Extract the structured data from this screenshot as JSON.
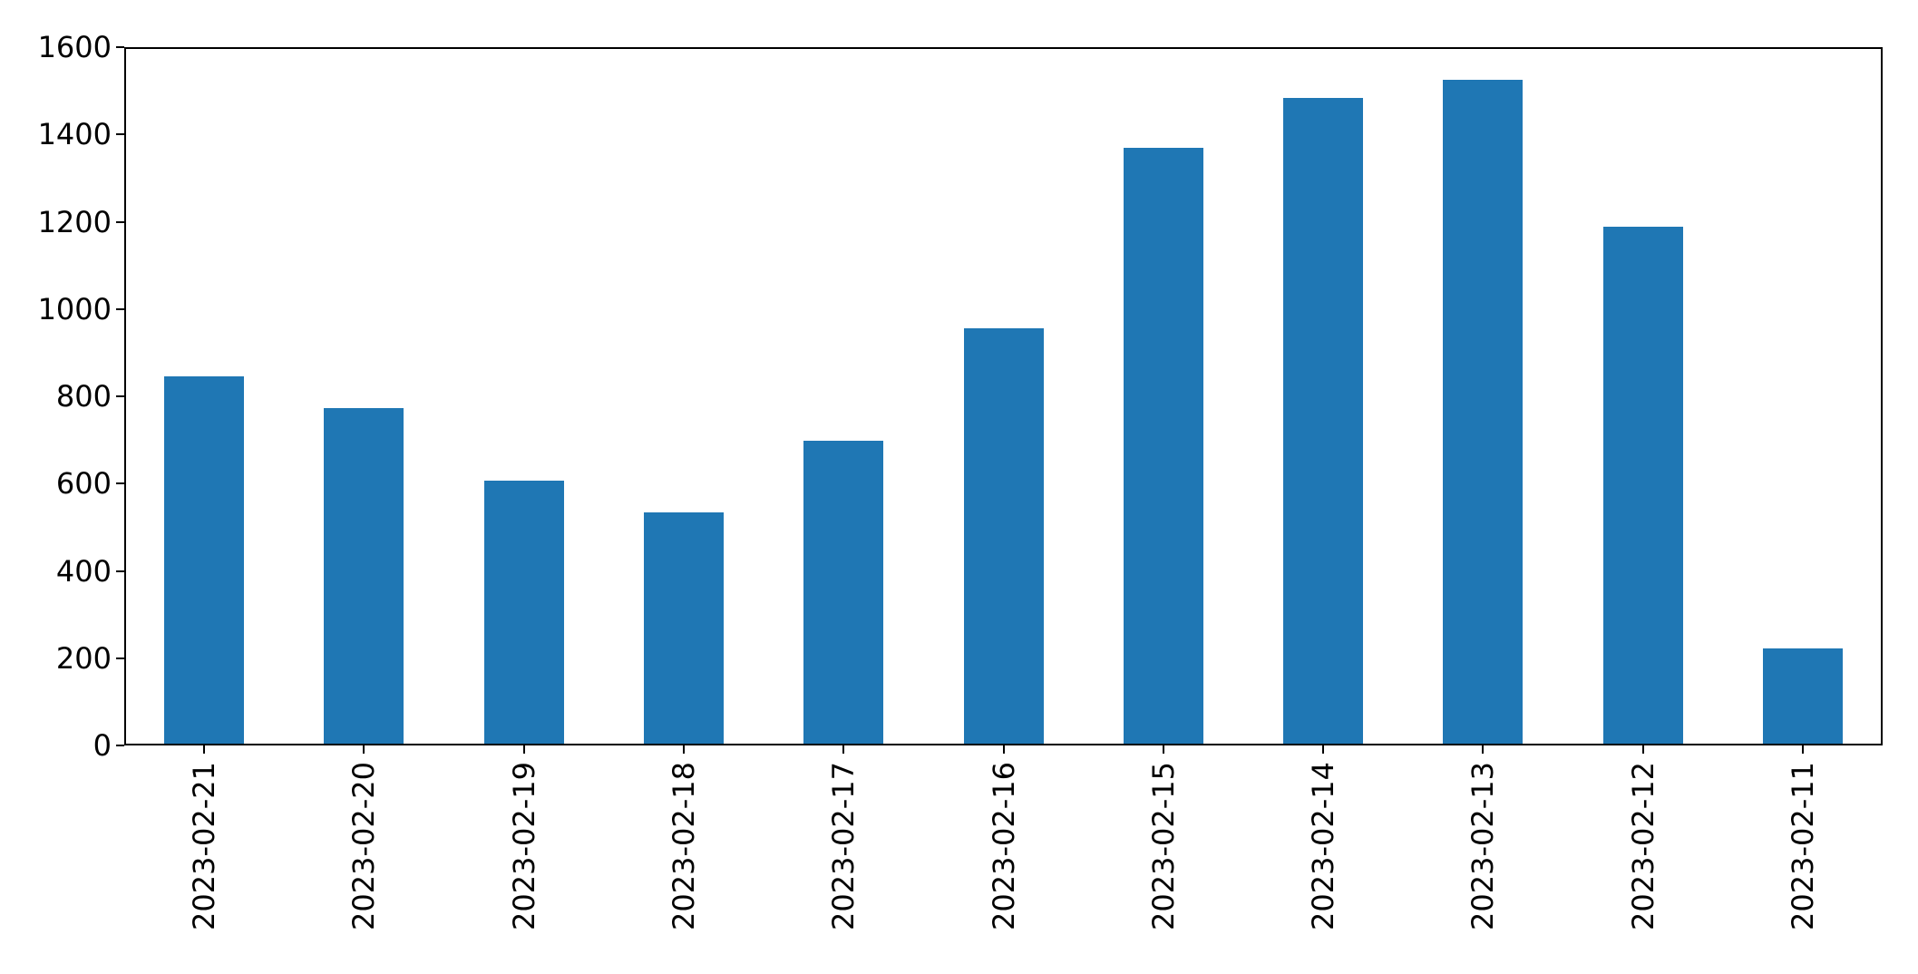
{
  "chart_data": {
    "type": "bar",
    "categories": [
      "2023-02-21",
      "2023-02-20",
      "2023-02-19",
      "2023-02-18",
      "2023-02-17",
      "2023-02-16",
      "2023-02-15",
      "2023-02-14",
      "2023-02-13",
      "2023-02-12",
      "2023-02-11"
    ],
    "values": [
      845,
      774,
      607,
      533,
      698,
      956,
      1370,
      1484,
      1525,
      1189,
      222
    ],
    "title": "",
    "xlabel": "",
    "ylabel": "",
    "ylim": [
      0,
      1600
    ],
    "yticks": [
      0,
      200,
      400,
      600,
      800,
      1000,
      1200,
      1400,
      1600
    ],
    "x_tick_rotation_deg": 90,
    "grid": false,
    "legend": false,
    "bar_color": "#1f77b4",
    "axis_color": "#000000",
    "background_color": "#ffffff"
  }
}
